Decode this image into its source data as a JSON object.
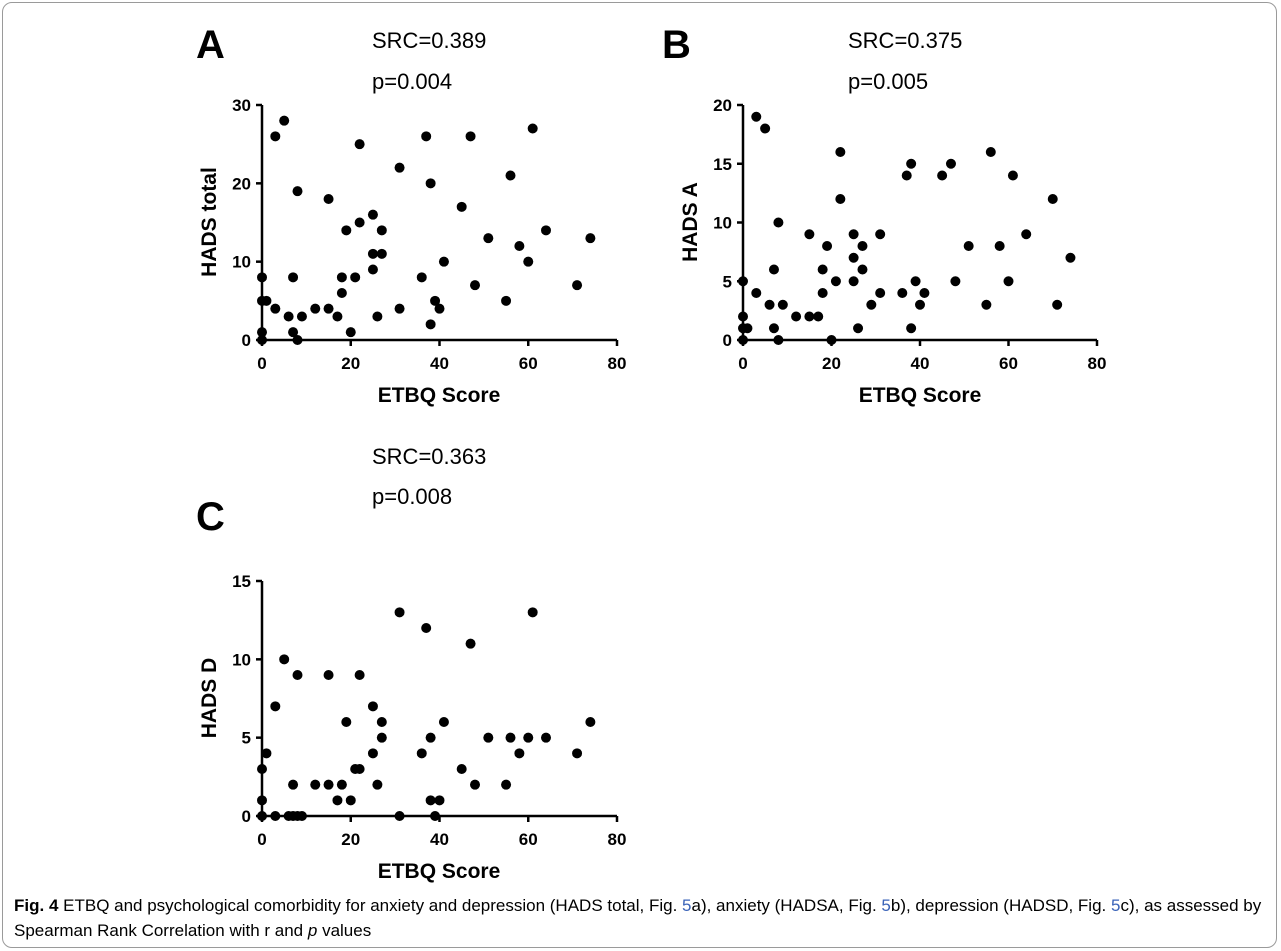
{
  "chart_data": [
    {
      "type": "scatter",
      "panel_letter": "A",
      "stats": {
        "src": "SRC=0.389",
        "p": "p=0.004"
      },
      "xlabel": "ETBQ Score",
      "ylabel": "HADS total",
      "xlim": [
        0,
        80
      ],
      "ylim": [
        0,
        30
      ],
      "xticks": [
        0,
        20,
        40,
        60,
        80
      ],
      "yticks": [
        0,
        10,
        20,
        30
      ],
      "grid": false,
      "points": [
        [
          0,
          8
        ],
        [
          0,
          5
        ],
        [
          0,
          1
        ],
        [
          0,
          0
        ],
        [
          1,
          5
        ],
        [
          3,
          26
        ],
        [
          3,
          4
        ],
        [
          5,
          28
        ],
        [
          6,
          3
        ],
        [
          7,
          8
        ],
        [
          7,
          1
        ],
        [
          8,
          19
        ],
        [
          8,
          0
        ],
        [
          9,
          3
        ],
        [
          12,
          4
        ],
        [
          15,
          18
        ],
        [
          15,
          4
        ],
        [
          17,
          3
        ],
        [
          18,
          8
        ],
        [
          18,
          6
        ],
        [
          19,
          14
        ],
        [
          20,
          1
        ],
        [
          21,
          8
        ],
        [
          22,
          25
        ],
        [
          22,
          15
        ],
        [
          25,
          16
        ],
        [
          25,
          9
        ],
        [
          25,
          11
        ],
        [
          26,
          3
        ],
        [
          27,
          14
        ],
        [
          27,
          11
        ],
        [
          31,
          22
        ],
        [
          31,
          4
        ],
        [
          36,
          8
        ],
        [
          37,
          26
        ],
        [
          38,
          20
        ],
        [
          38,
          2
        ],
        [
          39,
          5
        ],
        [
          40,
          4
        ],
        [
          41,
          10
        ],
        [
          45,
          17
        ],
        [
          47,
          26
        ],
        [
          48,
          7
        ],
        [
          51,
          13
        ],
        [
          55,
          5
        ],
        [
          56,
          21
        ],
        [
          58,
          12
        ],
        [
          60,
          10
        ],
        [
          61,
          27
        ],
        [
          64,
          14
        ],
        [
          71,
          7
        ],
        [
          74,
          13
        ]
      ]
    },
    {
      "type": "scatter",
      "panel_letter": "B",
      "stats": {
        "src": "SRC=0.375",
        "p": "p=0.005"
      },
      "xlabel": "ETBQ Score",
      "ylabel": "HADS A",
      "xlim": [
        0,
        80
      ],
      "ylim": [
        0,
        20
      ],
      "xticks": [
        0,
        20,
        40,
        60,
        80
      ],
      "yticks": [
        0,
        5,
        10,
        15,
        20
      ],
      "grid": false,
      "points": [
        [
          0,
          5
        ],
        [
          0,
          2
        ],
        [
          0,
          1
        ],
        [
          0,
          0
        ],
        [
          1,
          1
        ],
        [
          3,
          19
        ],
        [
          3,
          4
        ],
        [
          5,
          18
        ],
        [
          6,
          3
        ],
        [
          7,
          6
        ],
        [
          7,
          1
        ],
        [
          8,
          10
        ],
        [
          8,
          0
        ],
        [
          9,
          3
        ],
        [
          12,
          2
        ],
        [
          15,
          9
        ],
        [
          15,
          2
        ],
        [
          17,
          2
        ],
        [
          18,
          6
        ],
        [
          18,
          4
        ],
        [
          19,
          8
        ],
        [
          20,
          0
        ],
        [
          21,
          5
        ],
        [
          22,
          16
        ],
        [
          22,
          12
        ],
        [
          25,
          9
        ],
        [
          25,
          7
        ],
        [
          25,
          5
        ],
        [
          26,
          1
        ],
        [
          27,
          8
        ],
        [
          27,
          6
        ],
        [
          29,
          3
        ],
        [
          31,
          9
        ],
        [
          31,
          4
        ],
        [
          36,
          4
        ],
        [
          37,
          14
        ],
        [
          38,
          15
        ],
        [
          38,
          1
        ],
        [
          39,
          5
        ],
        [
          40,
          3
        ],
        [
          41,
          4
        ],
        [
          45,
          14
        ],
        [
          47,
          15
        ],
        [
          48,
          5
        ],
        [
          51,
          8
        ],
        [
          55,
          3
        ],
        [
          56,
          16
        ],
        [
          58,
          8
        ],
        [
          60,
          5
        ],
        [
          61,
          14
        ],
        [
          64,
          9
        ],
        [
          70,
          12
        ],
        [
          71,
          3
        ],
        [
          74,
          7
        ]
      ]
    },
    {
      "type": "scatter",
      "panel_letter": "C",
      "stats": {
        "src": "SRC=0.363",
        "p": "p=0.008"
      },
      "xlabel": "ETBQ Score",
      "ylabel": "HADS D",
      "xlim": [
        0,
        80
      ],
      "ylim": [
        0,
        15
      ],
      "xticks": [
        0,
        20,
        40,
        60,
        80
      ],
      "yticks": [
        0,
        5,
        10,
        15
      ],
      "grid": false,
      "points": [
        [
          0,
          3
        ],
        [
          0,
          1
        ],
        [
          0,
          0
        ],
        [
          1,
          4
        ],
        [
          3,
          7
        ],
        [
          3,
          0
        ],
        [
          5,
          10
        ],
        [
          6,
          0
        ],
        [
          7,
          2
        ],
        [
          7,
          0
        ],
        [
          8,
          9
        ],
        [
          8,
          0
        ],
        [
          9,
          0
        ],
        [
          12,
          2
        ],
        [
          15,
          9
        ],
        [
          15,
          2
        ],
        [
          17,
          1
        ],
        [
          18,
          2
        ],
        [
          19,
          6
        ],
        [
          20,
          1
        ],
        [
          21,
          3
        ],
        [
          22,
          9
        ],
        [
          22,
          3
        ],
        [
          25,
          7
        ],
        [
          25,
          4
        ],
        [
          26,
          2
        ],
        [
          27,
          6
        ],
        [
          27,
          5
        ],
        [
          31,
          13
        ],
        [
          31,
          0
        ],
        [
          36,
          4
        ],
        [
          37,
          12
        ],
        [
          38,
          5
        ],
        [
          38,
          1
        ],
        [
          39,
          0
        ],
        [
          40,
          1
        ],
        [
          41,
          6
        ],
        [
          45,
          3
        ],
        [
          47,
          11
        ],
        [
          48,
          2
        ],
        [
          51,
          5
        ],
        [
          55,
          2
        ],
        [
          56,
          5
        ],
        [
          58,
          4
        ],
        [
          60,
          5
        ],
        [
          61,
          13
        ],
        [
          64,
          5
        ],
        [
          71,
          4
        ],
        [
          74,
          6
        ]
      ]
    }
  ],
  "caption": {
    "label": "Fig. 4",
    "text_1": " ETBQ and psychological comorbidity for anxiety and depression (HADS total, Fig. ",
    "ref_a": "5",
    "text_2": "a), anxiety (HADSA, Fig. ",
    "ref_b": "5",
    "text_3": "b), depression (HADSD, Fig. ",
    "ref_c": "5",
    "text_4": "c), as assessed by Spearman Rank Correlation with r and ",
    "p_symbol": "p",
    "text_5": " values"
  }
}
